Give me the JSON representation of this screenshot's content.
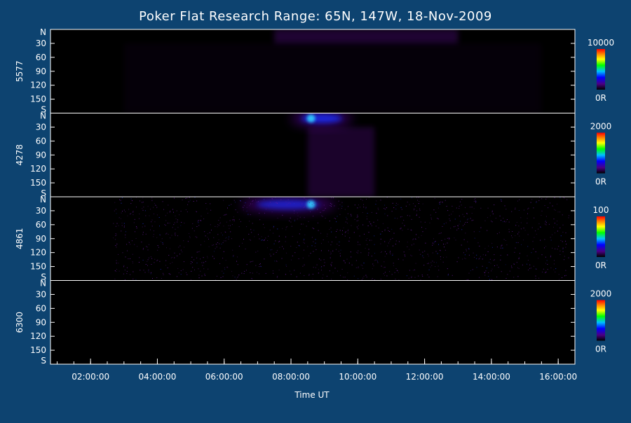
{
  "title": "Poker Flat Research Range: 65N, 147W, 18-Nov-2009",
  "chart_data": {
    "type": "heatmap",
    "title": "Poker Flat Research Range: 65N, 147W, 18-Nov-2009",
    "xlabel": "Time UT",
    "x_ticks": [
      "02:00:00",
      "04:00:00",
      "06:00:00",
      "08:00:00",
      "10:00:00",
      "12:00:00",
      "14:00:00",
      "16:00:00"
    ],
    "y_ticks": [
      "N",
      "30",
      "60",
      "90",
      "120",
      "150",
      "S"
    ],
    "y_range": [
      0,
      180
    ],
    "colormap": [
      "#000000",
      "#4b0082",
      "#0000ff",
      "#00c0ff",
      "#00ff00",
      "#ffff00",
      "#ff8000",
      "#ff0000"
    ],
    "panels": [
      {
        "name": "5577",
        "colorbar_max": "10000",
        "colorbar_min": "0R",
        "features": [
          {
            "label": "purple emission band",
            "start": "07:30:00",
            "end": "13:00:00",
            "angle_from": 0,
            "angle_to": 30,
            "intensity": 0.35
          },
          {
            "label": "faint haze",
            "start": "03:00:00",
            "end": "15:30:00",
            "angle_from": 30,
            "angle_to": 180,
            "intensity": 0.06
          }
        ]
      },
      {
        "name": "4278",
        "colorbar_max": "2000",
        "colorbar_min": "0R",
        "features": [
          {
            "label": "bright arc",
            "start": "08:00:00",
            "end": "09:50:00",
            "angle_from": 0,
            "angle_to": 35,
            "intensity": 0.8
          },
          {
            "label": "diffuse fan",
            "start": "08:30:00",
            "end": "10:30:00",
            "angle_from": 30,
            "angle_to": 180,
            "intensity": 0.3
          }
        ]
      },
      {
        "name": "4861",
        "colorbar_max": "100",
        "colorbar_min": "0R",
        "features": [
          {
            "label": "proton arc",
            "start": "06:30:00",
            "end": "09:20:00",
            "angle_from": 5,
            "angle_to": 40,
            "intensity": 0.65
          },
          {
            "label": "speckle noise",
            "start": "02:40:00",
            "end": "16:20:00",
            "angle_from": 0,
            "angle_to": 180,
            "intensity": 0.15
          }
        ]
      },
      {
        "name": "6300",
        "colorbar_max": "2000",
        "colorbar_min": "0R",
        "features": []
      }
    ]
  }
}
